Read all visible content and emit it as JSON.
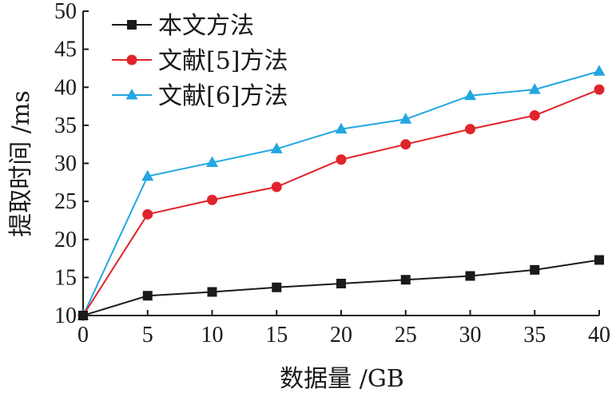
{
  "chart_data": {
    "type": "line",
    "title": "",
    "xlabel": "数据量 /GB",
    "ylabel": "提取时间 /ms",
    "x": [
      0,
      5,
      10,
      15,
      20,
      25,
      30,
      35,
      40
    ],
    "xlim": [
      0,
      40
    ],
    "ylim": [
      10,
      50
    ],
    "xticks": [
      0,
      5,
      10,
      15,
      20,
      25,
      30,
      35,
      40
    ],
    "yticks": [
      10,
      15,
      20,
      25,
      30,
      35,
      40,
      45,
      50
    ],
    "grid": false,
    "legend_position": "top-left",
    "series": [
      {
        "name": "本文方法",
        "marker": "square",
        "color": "#1a1a1a",
        "values": [
          10.0,
          12.6,
          13.1,
          13.7,
          14.2,
          14.7,
          15.2,
          16.0,
          17.3
        ]
      },
      {
        "name": "文献[5]方法",
        "marker": "circle",
        "color": "#e0242b",
        "values": [
          10.0,
          23.3,
          25.2,
          26.9,
          30.5,
          32.5,
          34.5,
          36.3,
          39.7
        ]
      },
      {
        "name": "文献[6]方法",
        "marker": "triangle",
        "color": "#22a7e0",
        "values": [
          10.0,
          28.3,
          30.1,
          31.9,
          34.5,
          35.8,
          38.9,
          39.7,
          42.1
        ]
      }
    ]
  }
}
